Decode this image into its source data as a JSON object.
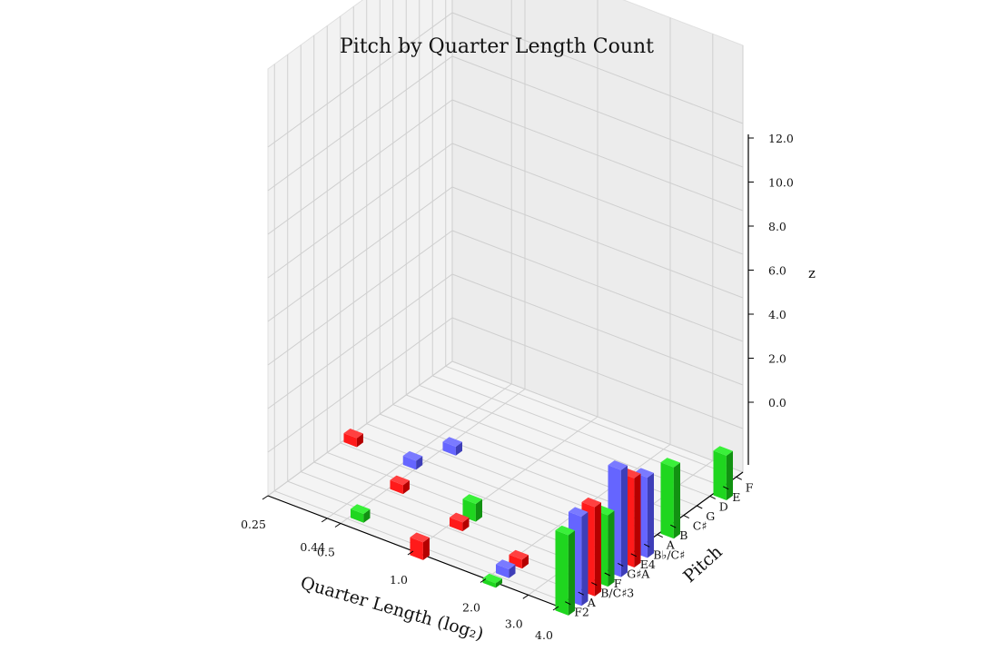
{
  "chart_data": {
    "type": "bar3d",
    "title": "Pitch by Quarter Length Count",
    "xlabel": "Quarter Length (log₂)",
    "ylabel": "Pitch",
    "zlabel": "z",
    "x_ticks": [
      "0.25",
      "0.44",
      "0.5",
      "1.0",
      "2.0",
      "3.0",
      "4.0"
    ],
    "y_ticks": [
      "F2",
      "A",
      "B/C♯3",
      "F",
      "G♯A",
      "E4",
      "B♭/C♯",
      "A",
      "B",
      "C♯",
      "G",
      "D",
      "E",
      "F"
    ],
    "z_ticks": [
      "0.0",
      "2.0",
      "4.0",
      "6.0",
      "8.0",
      "10.0",
      "12.0"
    ],
    "zlim": [
      0,
      12
    ],
    "series_colors": [
      "#2ee62e",
      "#6464ff",
      "#ff2020"
    ],
    "bars": [
      {
        "x": "0.25",
        "pitch": "B♭/C♯",
        "z": 1,
        "color": "red"
      },
      {
        "x": "0.44",
        "pitch": "B♭/C♯",
        "z": 1,
        "color": "blue"
      },
      {
        "x": "0.5",
        "pitch": "B",
        "z": 1,
        "color": "blue"
      },
      {
        "x": "0.5",
        "pitch": "G♯A",
        "z": 1,
        "color": "red"
      },
      {
        "x": "0.5",
        "pitch": "A",
        "z": 1,
        "color": "green"
      },
      {
        "x": "1.0",
        "pitch": "F2",
        "z": 2,
        "color": "red"
      },
      {
        "x": "1.0",
        "pitch": "F",
        "z": 1,
        "color": "red"
      },
      {
        "x": "1.0",
        "pitch": "G♯A",
        "z": 2,
        "color": "green"
      },
      {
        "x": "2.0",
        "pitch": "F2",
        "z": 0.5,
        "color": "green"
      },
      {
        "x": "2.0",
        "pitch": "A",
        "z": 1,
        "color": "blue"
      },
      {
        "x": "2.0",
        "pitch": "B/C♯3",
        "z": 1,
        "color": "red"
      },
      {
        "x": "4.0",
        "pitch": "F2",
        "z": 9,
        "color": "green"
      },
      {
        "x": "4.0",
        "pitch": "A",
        "z": 10,
        "color": "blue"
      },
      {
        "x": "4.0",
        "pitch": "B/C♯3",
        "z": 10,
        "color": "red"
      },
      {
        "x": "4.0",
        "pitch": "F",
        "z": 8,
        "color": "green"
      },
      {
        "x": "4.0",
        "pitch": "G♯A",
        "z": 12,
        "color": "blue"
      },
      {
        "x": "4.0",
        "pitch": "E4",
        "z": 10,
        "color": "red"
      },
      {
        "x": "4.0",
        "pitch": "B♭/C♯",
        "z": 9,
        "color": "blue"
      },
      {
        "x": "4.0",
        "pitch": "B",
        "z": 8,
        "color": "green"
      },
      {
        "x": "4.0",
        "pitch": "E",
        "z": 5,
        "color": "green"
      }
    ]
  }
}
